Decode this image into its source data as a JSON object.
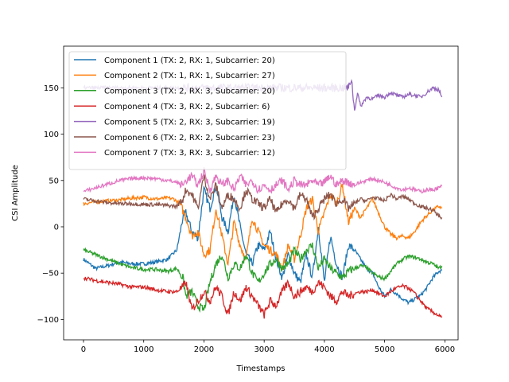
{
  "chart_data": {
    "type": "line",
    "title": "",
    "xlabel": "Timestamps",
    "ylabel": "CSI Amplitude",
    "xlim": [
      -330,
      6220
    ],
    "ylim": [
      -122,
      195
    ],
    "xticks": [
      0,
      1000,
      2000,
      3000,
      4000,
      5000,
      6000
    ],
    "yticks": [
      -100,
      -50,
      0,
      50,
      100,
      150
    ],
    "grid": false,
    "legend_position": "upper-left",
    "series": [
      {
        "name": "Component 1 (TX: 2, RX: 1, Subcarrier: 20)",
        "color": "#1f77b4",
        "x": [
          0,
          200,
          400,
          600,
          800,
          1000,
          1200,
          1400,
          1550,
          1650,
          1700,
          1800,
          1900,
          2000,
          2100,
          2200,
          2300,
          2400,
          2500,
          2600,
          2700,
          2800,
          2900,
          3000,
          3100,
          3200,
          3300,
          3400,
          3500,
          3600,
          3700,
          3800,
          3900,
          4000,
          4100,
          4200,
          4300,
          4400,
          4500,
          4600,
          4700,
          4800,
          4900,
          5000,
          5100,
          5200,
          5300,
          5400,
          5500,
          5600,
          5700,
          5800,
          5900,
          5950
        ],
        "y": [
          -35,
          -45,
          -42,
          -38,
          -40,
          -40,
          -38,
          -35,
          -25,
          10,
          15,
          -5,
          -12,
          40,
          20,
          45,
          10,
          -5,
          35,
          0,
          -30,
          -40,
          -20,
          -25,
          -5,
          -35,
          -55,
          -30,
          -50,
          -60,
          -30,
          -55,
          0,
          -60,
          -10,
          -40,
          -55,
          -20,
          -25,
          -35,
          -45,
          -50,
          -65,
          -75,
          -68,
          -72,
          -78,
          -82,
          -78,
          -74,
          -66,
          -55,
          -48,
          -47
        ]
      },
      {
        "name": "Component 2 (TX: 1, RX: 1, Subcarrier: 27)",
        "color": "#ff7f0e",
        "x": [
          0,
          200,
          400,
          600,
          800,
          1000,
          1200,
          1400,
          1500,
          1600,
          1700,
          1800,
          1900,
          2000,
          2100,
          2200,
          2300,
          2400,
          2500,
          2600,
          2700,
          2800,
          2900,
          3000,
          3100,
          3200,
          3300,
          3400,
          3500,
          3600,
          3700,
          3800,
          3900,
          4000,
          4100,
          4200,
          4300,
          4400,
          4500,
          4600,
          4700,
          4800,
          4900,
          5000,
          5100,
          5200,
          5300,
          5400,
          5500,
          5600,
          5700,
          5800,
          5900,
          5950
        ],
        "y": [
          25,
          27,
          28,
          29,
          31,
          32,
          30,
          31,
          30,
          25,
          10,
          -10,
          -5,
          -30,
          -25,
          20,
          -10,
          -40,
          5,
          -20,
          -35,
          10,
          -5,
          -20,
          -25,
          -30,
          -45,
          -20,
          -35,
          -10,
          20,
          30,
          -5,
          15,
          35,
          25,
          45,
          5,
          20,
          10,
          20,
          30,
          15,
          0,
          -8,
          -12,
          -10,
          -12,
          -5,
          5,
          12,
          18,
          22,
          20
        ]
      },
      {
        "name": "Component 3 (TX: 2, RX: 3, Subcarrier: 20)",
        "color": "#2ca02c",
        "x": [
          0,
          200,
          400,
          600,
          800,
          1000,
          1200,
          1400,
          1550,
          1650,
          1700,
          1800,
          1900,
          2000,
          2100,
          2200,
          2300,
          2400,
          2500,
          2600,
          2700,
          2800,
          2900,
          3000,
          3100,
          3200,
          3300,
          3400,
          3500,
          3600,
          3700,
          3800,
          3900,
          4000,
          4100,
          4200,
          4300,
          4400,
          4500,
          4600,
          4700,
          4800,
          4900,
          5000,
          5100,
          5200,
          5300,
          5400,
          5500,
          5600,
          5700,
          5800,
          5900,
          5950
        ],
        "y": [
          -25,
          -30,
          -35,
          -40,
          -44,
          -46,
          -46,
          -48,
          -45,
          -55,
          -75,
          -70,
          -85,
          -90,
          -60,
          -40,
          -30,
          -55,
          -40,
          -45,
          -30,
          -50,
          -60,
          -50,
          -40,
          -35,
          -45,
          -40,
          -25,
          -35,
          -25,
          -20,
          -45,
          -35,
          -45,
          -50,
          -55,
          -48,
          -45,
          -42,
          -44,
          -50,
          -54,
          -56,
          -48,
          -40,
          -35,
          -32,
          -33,
          -35,
          -38,
          -40,
          -45,
          -42
        ]
      },
      {
        "name": "Component 4 (TX: 3, RX: 2, Subcarrier: 6)",
        "color": "#d62728",
        "x": [
          0,
          200,
          400,
          600,
          800,
          1000,
          1200,
          1400,
          1550,
          1650,
          1700,
          1800,
          1900,
          2000,
          2100,
          2200,
          2300,
          2400,
          2500,
          2600,
          2700,
          2800,
          2900,
          3000,
          3100,
          3200,
          3300,
          3400,
          3500,
          3600,
          3700,
          3800,
          3900,
          4000,
          4100,
          4200,
          4300,
          4400,
          4500,
          4600,
          4700,
          4800,
          4900,
          5000,
          5100,
          5200,
          5300,
          5400,
          5500,
          5600,
          5700,
          5800,
          5900,
          5950
        ],
        "y": [
          -55,
          -58,
          -60,
          -62,
          -65,
          -65,
          -68,
          -70,
          -70,
          -65,
          -60,
          -90,
          -80,
          -70,
          -80,
          -65,
          -75,
          -95,
          -70,
          -80,
          -65,
          -75,
          -85,
          -95,
          -80,
          -85,
          -70,
          -60,
          -75,
          -70,
          -65,
          -70,
          -60,
          -65,
          -75,
          -80,
          -70,
          -75,
          -72,
          -70,
          -70,
          -68,
          -72,
          -75,
          -70,
          -66,
          -64,
          -66,
          -72,
          -80,
          -88,
          -92,
          -96,
          -98
        ]
      },
      {
        "name": "Component 5 (TX: 2, RX: 3, Subcarrier: 19)",
        "color": "#9467bd",
        "x": [
          0,
          200,
          400,
          600,
          800,
          1000,
          1200,
          1400,
          1600,
          1800,
          2000,
          2200,
          2400,
          2600,
          2800,
          3000,
          3200,
          3400,
          3600,
          3800,
          4000,
          4200,
          4400,
          4450,
          4500,
          4550,
          4600,
          4700,
          4800,
          4900,
          5000,
          5100,
          5200,
          5300,
          5400,
          5500,
          5600,
          5700,
          5800,
          5900,
          5950
        ],
        "y": [
          150,
          150,
          150,
          150,
          150,
          150,
          150,
          150,
          150,
          150,
          150,
          150,
          150,
          150,
          150,
          150,
          150,
          150,
          150,
          150,
          150,
          150,
          150,
          160,
          125,
          145,
          130,
          140,
          138,
          142,
          140,
          145,
          142,
          140,
          143,
          142,
          140,
          145,
          150,
          148,
          140
        ]
      },
      {
        "name": "Component 6 (TX: 2, RX: 2, Subcarrier: 23)",
        "color": "#8c564b",
        "x": [
          0,
          200,
          400,
          600,
          800,
          1000,
          1200,
          1400,
          1550,
          1650,
          1700,
          1800,
          1900,
          2000,
          2100,
          2200,
          2300,
          2400,
          2500,
          2600,
          2700,
          2800,
          2900,
          3000,
          3100,
          3200,
          3300,
          3400,
          3500,
          3600,
          3700,
          3800,
          3900,
          4000,
          4100,
          4200,
          4300,
          4400,
          4500,
          4600,
          4700,
          4800,
          4900,
          5000,
          5100,
          5200,
          5300,
          5400,
          5500,
          5600,
          5700,
          5800,
          5900,
          5950
        ],
        "y": [
          30,
          28,
          26,
          25,
          25,
          24,
          24,
          23,
          22,
          30,
          40,
          35,
          20,
          55,
          30,
          45,
          20,
          35,
          30,
          20,
          40,
          30,
          25,
          20,
          30,
          15,
          25,
          30,
          20,
          35,
          30,
          10,
          20,
          30,
          35,
          25,
          30,
          20,
          25,
          30,
          28,
          32,
          30,
          28,
          35,
          30,
          33,
          30,
          25,
          22,
          20,
          18,
          12,
          10
        ]
      },
      {
        "name": "Component 7 (TX: 3, RX: 3, Subcarrier: 12)",
        "color": "#e377c2",
        "x": [
          0,
          200,
          400,
          600,
          800,
          1000,
          1200,
          1400,
          1550,
          1650,
          1700,
          1800,
          1900,
          2000,
          2100,
          2200,
          2300,
          2400,
          2500,
          2600,
          2700,
          2800,
          2900,
          3000,
          3100,
          3200,
          3300,
          3400,
          3500,
          3600,
          3700,
          3800,
          3900,
          4000,
          4100,
          4200,
          4300,
          4400,
          4500,
          4600,
          4700,
          4800,
          4900,
          5000,
          5100,
          5200,
          5300,
          5400,
          5500,
          5600,
          5700,
          5800,
          5900,
          5950
        ],
        "y": [
          38,
          42,
          46,
          50,
          52,
          53,
          52,
          50,
          48,
          45,
          50,
          55,
          45,
          60,
          40,
          55,
          45,
          50,
          40,
          55,
          45,
          50,
          40,
          45,
          40,
          45,
          50,
          40,
          50,
          45,
          45,
          50,
          45,
          48,
          55,
          45,
          50,
          48,
          45,
          48,
          50,
          52,
          50,
          48,
          45,
          42,
          40,
          42,
          40,
          38,
          40,
          40,
          42,
          44
        ]
      }
    ]
  }
}
